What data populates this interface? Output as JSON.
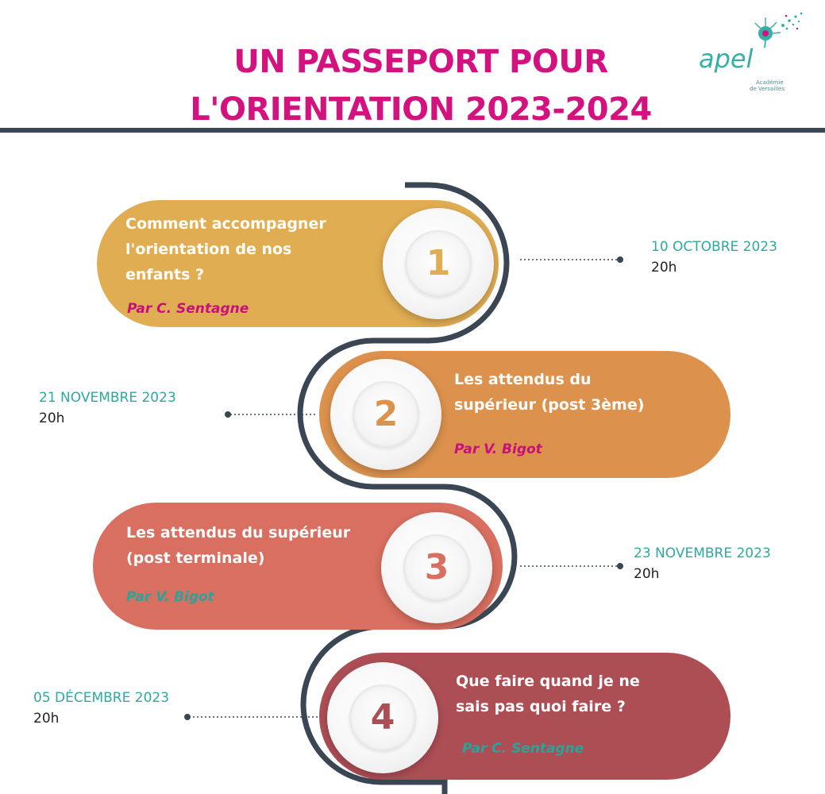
{
  "header": {
    "title_line1": "UN PASSEPORT POUR",
    "title_line2": "L'ORIENTATION 2023-2024"
  },
  "logo": {
    "word": "apel",
    "subtitle_line1": "Académie",
    "subtitle_line2": "de Versailles",
    "icon": "dandelion-icon"
  },
  "colors": {
    "title": "#d4127f",
    "rule": "#3b4654",
    "snake": "#3b4654",
    "date": "#2fa9a0",
    "pill1": "#e0ad52",
    "pill2": "#dc924d",
    "pill3": "#d96f60",
    "pill4": "#ad4e55",
    "author_magenta": "#c8107c",
    "author_teal": "#2aa39b"
  },
  "sessions": [
    {
      "number": "1",
      "topic": "Comment accompagner\nl'orientation de nos\nenfants ?",
      "author": "Par C. Sentagne",
      "date": "10 OCTOBRE 2023",
      "time": "20h"
    },
    {
      "number": "2",
      "topic": "Les attendus du\nsupérieur (post 3ème)",
      "author": "Par V. Bigot",
      "date": "21 NOVEMBRE 2023",
      "time": "20h"
    },
    {
      "number": "3",
      "topic": "Les attendus du supérieur\n(post terminale)",
      "author": "Par V. Bigot",
      "date": "23 NOVEMBRE 2023",
      "time": "20h"
    },
    {
      "number": "4",
      "topic": "Que faire quand je ne\nsais pas quoi faire ?",
      "author": "Par C. Sentagne",
      "date": "05 DÉCEMBRE 2023",
      "time": "20h"
    }
  ]
}
